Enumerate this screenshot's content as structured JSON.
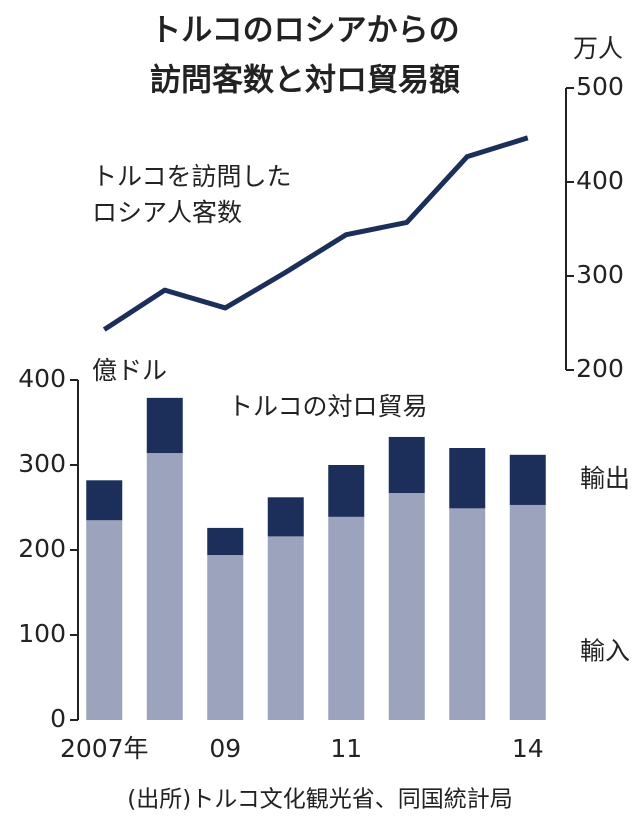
{
  "title": [
    "トルコのロシアからの",
    "訪問客数と対ロ貿易額"
  ],
  "source": "(出所)トルコ文化観光省、同国統計局",
  "chart_data": [
    {
      "type": "line",
      "y_label": "万人",
      "annotation": [
        "トルコを訪問した",
        "ロシア人客数"
      ],
      "categories": [
        "2007年",
        null,
        "09",
        null,
        "11",
        null,
        null,
        "14"
      ],
      "values": [
        243,
        285,
        266,
        304,
        344,
        357,
        427,
        447
      ],
      "color": "#1b2f5a",
      "ylim": [
        200,
        500
      ],
      "yticks": [
        200,
        300,
        400,
        500
      ]
    },
    {
      "type": "stacked_bar",
      "y_label": "億ドル",
      "annotation": "トルコの対ロ貿易",
      "categories": [
        "2007年",
        null,
        "09",
        null,
        "11",
        null,
        null,
        "14"
      ],
      "series": [
        {
          "name": "輸入",
          "color": "#9ca3bd",
          "values": [
            235,
            314,
            194,
            216,
            239,
            267,
            249,
            253
          ]
        },
        {
          "name": "輸出",
          "color": "#1b2f5a",
          "values": [
            47,
            65,
            32,
            46,
            61,
            66,
            71,
            59
          ]
        }
      ],
      "ylim": [
        0,
        400
      ],
      "yticks": [
        0,
        100,
        200,
        300,
        400
      ]
    }
  ]
}
